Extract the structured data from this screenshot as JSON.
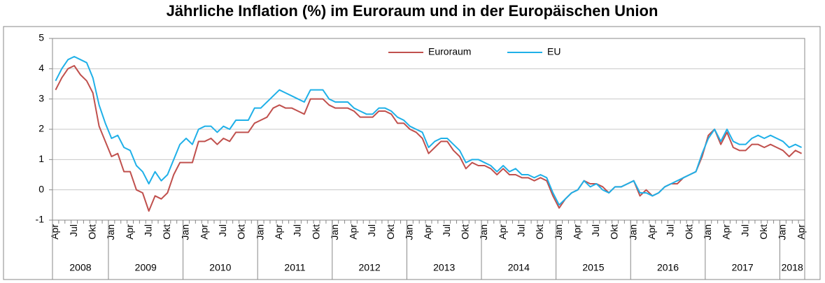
{
  "chart_data": {
    "type": "line",
    "title": "Jährliche Inflation (%) im Euroraum und in der Europäischen Union",
    "categories": [
      "Apr",
      null,
      null,
      "Jul",
      null,
      null,
      "Okt",
      null,
      null,
      "Jan",
      null,
      null,
      "Apr",
      null,
      null,
      "Jul",
      null,
      null,
      "Okt",
      null,
      null,
      "Jan",
      null,
      null,
      "Apr",
      null,
      null,
      "Jul",
      null,
      null,
      "Okt",
      null,
      null,
      "Jan",
      null,
      null,
      "Apr",
      null,
      null,
      "Jul",
      null,
      null,
      "Okt",
      null,
      null,
      "Jan",
      null,
      null,
      "Apr",
      null,
      null,
      "Jul",
      null,
      null,
      "Okt",
      null,
      null,
      "Jan",
      null,
      null,
      "Apr",
      null,
      null,
      "Jul",
      null,
      null,
      "Okt",
      null,
      null,
      "Jan",
      null,
      null,
      "Apr",
      null,
      null,
      "Jul",
      null,
      null,
      "Okt",
      null,
      null,
      "Jan",
      null,
      null,
      "Apr",
      null,
      null,
      "Jul",
      null,
      null,
      "Okt",
      null,
      null,
      "Jan",
      null,
      null,
      "Apr",
      null,
      null,
      "Jul",
      null,
      null,
      "Okt",
      null,
      null,
      "Jan",
      null,
      null,
      "Apr",
      null,
      null,
      "Jul",
      null,
      null,
      "Okt",
      null,
      null,
      "Jan",
      null,
      null,
      "Apr"
    ],
    "years": [
      "2008",
      "2009",
      "2010",
      "2011",
      "2012",
      "2013",
      "2014",
      "2015",
      "2016",
      "2017",
      "2018"
    ],
    "series": [
      {
        "name": "Euroraum",
        "color": "#c0504d",
        "values": [
          3.3,
          3.7,
          4.0,
          4.1,
          3.8,
          3.6,
          3.2,
          2.1,
          1.6,
          1.1,
          1.2,
          0.6,
          0.6,
          0.0,
          -0.1,
          -0.7,
          -0.2,
          -0.3,
          -0.1,
          0.5,
          0.9,
          0.9,
          0.9,
          1.6,
          1.6,
          1.7,
          1.5,
          1.7,
          1.6,
          1.9,
          1.9,
          1.9,
          2.2,
          2.3,
          2.4,
          2.7,
          2.8,
          2.7,
          2.7,
          2.6,
          2.5,
          3.0,
          3.0,
          3.0,
          2.8,
          2.7,
          2.7,
          2.7,
          2.6,
          2.4,
          2.4,
          2.4,
          2.6,
          2.6,
          2.5,
          2.2,
          2.2,
          2.0,
          1.9,
          1.7,
          1.2,
          1.4,
          1.6,
          1.6,
          1.3,
          1.1,
          0.7,
          0.9,
          0.8,
          0.8,
          0.7,
          0.5,
          0.7,
          0.5,
          0.5,
          0.4,
          0.4,
          0.3,
          0.4,
          0.3,
          -0.2,
          -0.6,
          -0.3,
          -0.1,
          0.0,
          0.3,
          0.2,
          0.2,
          0.1,
          -0.1,
          0.1,
          0.1,
          0.2,
          0.3,
          -0.2,
          0.0,
          -0.2,
          -0.1,
          0.1,
          0.2,
          0.2,
          0.4,
          0.5,
          0.6,
          1.1,
          1.8,
          2.0,
          1.5,
          1.9,
          1.4,
          1.3,
          1.3,
          1.5,
          1.5,
          1.4,
          1.5,
          1.4,
          1.3,
          1.1,
          1.3,
          1.2
        ]
      },
      {
        "name": "EU",
        "color": "#1fb0e8",
        "values": [
          3.6,
          4.0,
          4.3,
          4.4,
          4.3,
          4.2,
          3.7,
          2.8,
          2.2,
          1.7,
          1.8,
          1.4,
          1.3,
          0.8,
          0.6,
          0.2,
          0.6,
          0.3,
          0.5,
          1.0,
          1.5,
          1.7,
          1.5,
          2.0,
          2.1,
          2.1,
          1.9,
          2.1,
          2.0,
          2.3,
          2.3,
          2.3,
          2.7,
          2.7,
          2.9,
          3.1,
          3.3,
          3.2,
          3.1,
          3.0,
          2.9,
          3.3,
          3.3,
          3.3,
          3.0,
          2.9,
          2.9,
          2.9,
          2.7,
          2.6,
          2.5,
          2.5,
          2.7,
          2.7,
          2.6,
          2.4,
          2.3,
          2.1,
          2.0,
          1.9,
          1.4,
          1.6,
          1.7,
          1.7,
          1.5,
          1.3,
          0.9,
          1.0,
          1.0,
          0.9,
          0.8,
          0.6,
          0.8,
          0.6,
          0.7,
          0.5,
          0.5,
          0.4,
          0.5,
          0.4,
          -0.1,
          -0.5,
          -0.3,
          -0.1,
          0.0,
          0.3,
          0.1,
          0.2,
          0.0,
          -0.1,
          0.1,
          0.1,
          0.2,
          0.3,
          -0.1,
          -0.1,
          -0.2,
          -0.1,
          0.1,
          0.2,
          0.3,
          0.4,
          0.5,
          0.6,
          1.2,
          1.7,
          2.0,
          1.6,
          2.0,
          1.6,
          1.5,
          1.5,
          1.7,
          1.8,
          1.7,
          1.8,
          1.7,
          1.6,
          1.4,
          1.5,
          1.4
        ]
      }
    ],
    "ylim": [
      -1,
      5
    ],
    "yticks": [
      -1,
      0,
      1,
      2,
      3,
      4,
      5
    ],
    "grid": true,
    "legend": "top"
  }
}
